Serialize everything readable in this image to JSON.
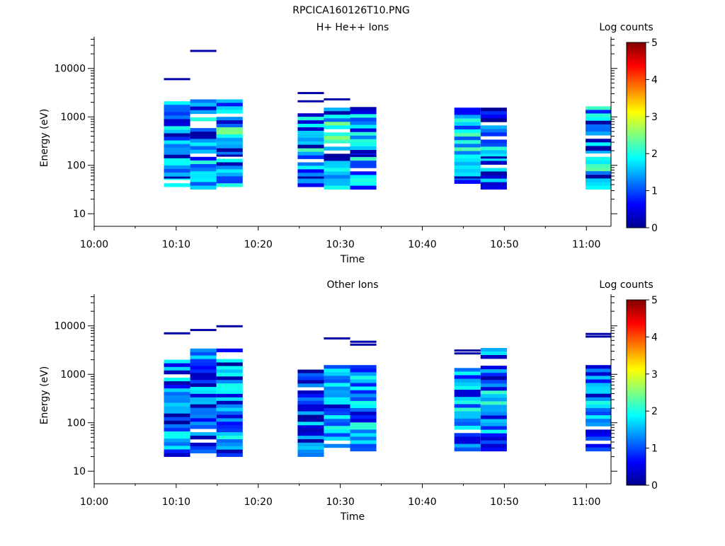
{
  "figure_title": "RPCICA160126T10.PNG",
  "chart_data": [
    {
      "type": "heatmap",
      "title": "H+ He++ Ions",
      "xlabel": "Time",
      "ylabel": "Energy (eV)",
      "x_ticks": [
        "10:00",
        "10:10",
        "10:20",
        "10:30",
        "10:40",
        "10:50",
        "11:00"
      ],
      "x_range_minutes": [
        0,
        63
      ],
      "y_scale": "log",
      "y_range": [
        5.5,
        45000
      ],
      "y_ticks": [
        "10",
        "100",
        "1000",
        "10000"
      ],
      "colorbar": {
        "label": "Log counts",
        "range": [
          0,
          5
        ],
        "ticks": [
          "0",
          "1",
          "2",
          "3",
          "4",
          "5"
        ]
      },
      "blocks": [
        {
          "t0": 8.5,
          "t1": 11.7,
          "emin": 36,
          "emax": 2100,
          "level": 1.6
        },
        {
          "t0": 11.7,
          "t1": 14.9,
          "emin": 32,
          "emax": 2300,
          "level": 1.5
        },
        {
          "t0": 14.9,
          "t1": 18.1,
          "emin": 36,
          "emax": 2300,
          "level": 1.8
        },
        {
          "t0": 24.8,
          "t1": 28.0,
          "emin": 36,
          "emax": 1400,
          "level": 1.7
        },
        {
          "t0": 28.0,
          "t1": 31.2,
          "emin": 32,
          "emax": 1550,
          "level": 2.0
        },
        {
          "t0": 31.2,
          "t1": 34.4,
          "emin": 32,
          "emax": 1600,
          "level": 1.6
        },
        {
          "t0": 43.9,
          "t1": 47.1,
          "emin": 42,
          "emax": 1550,
          "level": 1.7
        },
        {
          "t0": 47.1,
          "t1": 50.3,
          "emin": 32,
          "emax": 1550,
          "level": 1.6
        },
        {
          "t0": 59.9,
          "t1": 63.0,
          "emin": 32,
          "emax": 1650,
          "level": 1.8
        }
      ],
      "lines": [
        {
          "t0": 8.5,
          "t1": 11.7,
          "e": 6000,
          "level": 0.2
        },
        {
          "t0": 11.7,
          "t1": 14.9,
          "e": 23000,
          "level": 0.2
        },
        {
          "t0": 24.8,
          "t1": 28.0,
          "e": 3100,
          "level": 0.2
        },
        {
          "t0": 24.8,
          "t1": 28.0,
          "e": 2100,
          "level": 0.2
        },
        {
          "t0": 28.0,
          "t1": 31.2,
          "e": 2300,
          "level": 0.2
        },
        {
          "t0": 8.5,
          "t1": 11.7,
          "e": 56,
          "level": 0.2
        },
        {
          "t0": 24.8,
          "t1": 28.0,
          "e": 56,
          "level": 0.2
        },
        {
          "t0": 43.9,
          "t1": 47.1,
          "e": 56,
          "level": 0.2
        },
        {
          "t0": 59.9,
          "t1": 63.0,
          "e": 210,
          "level": 0.2
        },
        {
          "t0": 47.1,
          "t1": 50.3,
          "e": 145,
          "level": 0.2
        },
        {
          "t0": 14.9,
          "t1": 18.1,
          "e": 158,
          "level": 0.2
        },
        {
          "t0": 31.2,
          "t1": 34.4,
          "e": 158,
          "level": 0.2
        }
      ]
    },
    {
      "type": "heatmap",
      "title": "Other Ions",
      "xlabel": "Time",
      "ylabel": "Energy (eV)",
      "x_ticks": [
        "10:00",
        "10:10",
        "10:20",
        "10:30",
        "10:40",
        "10:50",
        "11:00"
      ],
      "x_range_minutes": [
        0,
        63
      ],
      "y_scale": "log",
      "y_range": [
        5.5,
        45000
      ],
      "y_ticks": [
        "10",
        "100",
        "1000",
        "10000"
      ],
      "colorbar": {
        "label": "Log counts",
        "range": [
          0,
          5
        ],
        "ticks": [
          "0",
          "1",
          "2",
          "3",
          "4",
          "5"
        ]
      },
      "blocks": [
        {
          "t0": 8.5,
          "t1": 11.7,
          "emin": 20,
          "emax": 2000,
          "level": 1.5
        },
        {
          "t0": 11.7,
          "t1": 14.9,
          "emin": 20,
          "emax": 3400,
          "level": 1.5
        },
        {
          "t0": 14.9,
          "t1": 18.1,
          "emin": 20,
          "emax": 3400,
          "level": 1.6
        },
        {
          "t0": 24.8,
          "t1": 28.0,
          "emin": 20,
          "emax": 1250,
          "level": 1.2
        },
        {
          "t0": 28.0,
          "t1": 31.2,
          "emin": 26,
          "emax": 1550,
          "level": 1.7
        },
        {
          "t0": 31.2,
          "t1": 34.4,
          "emin": 26,
          "emax": 1550,
          "level": 1.5
        },
        {
          "t0": 43.9,
          "t1": 47.1,
          "emin": 26,
          "emax": 1350,
          "level": 1.5
        },
        {
          "t0": 47.1,
          "t1": 50.3,
          "emin": 26,
          "emax": 3500,
          "level": 1.5
        },
        {
          "t0": 59.9,
          "t1": 63.0,
          "emin": 26,
          "emax": 1550,
          "level": 1.4
        }
      ],
      "lines": [
        {
          "t0": 8.5,
          "t1": 11.7,
          "e": 7000,
          "level": 0.2
        },
        {
          "t0": 11.7,
          "t1": 14.9,
          "e": 8200,
          "level": 0.2
        },
        {
          "t0": 14.9,
          "t1": 18.1,
          "e": 9800,
          "level": 0.2
        },
        {
          "t0": 28.0,
          "t1": 31.2,
          "e": 5500,
          "level": 0.2
        },
        {
          "t0": 31.2,
          "t1": 34.4,
          "e": 4700,
          "level": 0.2
        },
        {
          "t0": 31.2,
          "t1": 34.4,
          "e": 4100,
          "level": 0.2
        },
        {
          "t0": 43.9,
          "t1": 47.1,
          "e": 3100,
          "level": 0.2
        },
        {
          "t0": 43.9,
          "t1": 47.1,
          "e": 2700,
          "level": 0.2
        },
        {
          "t0": 59.9,
          "t1": 63.0,
          "e": 6800,
          "level": 0.2
        },
        {
          "t0": 59.9,
          "t1": 63.0,
          "e": 6000,
          "level": 0.2
        }
      ]
    }
  ]
}
